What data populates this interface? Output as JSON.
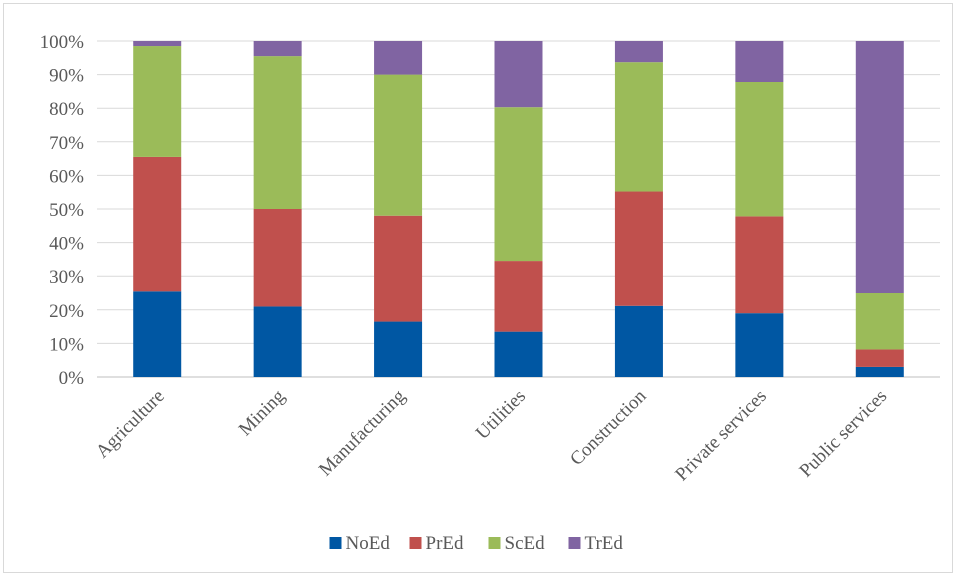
{
  "chart_data": {
    "type": "bar",
    "stacked": true,
    "percent": true,
    "categories": [
      "Agriculture",
      "Mining",
      "Manufacturing",
      "Utilities",
      "Construction",
      "Private services",
      "Public services"
    ],
    "series": [
      {
        "name": "NoEd",
        "color": "#0057a3",
        "values": [
          25.5,
          21.0,
          16.5,
          13.5,
          21.2,
          19.0,
          3.0
        ]
      },
      {
        "name": "PrEd",
        "color": "#c0504d",
        "values": [
          40.0,
          29.0,
          31.5,
          21.0,
          34.0,
          28.8,
          5.2
        ]
      },
      {
        "name": "ScEd",
        "color": "#9bbb59",
        "values": [
          33.0,
          45.5,
          42.0,
          45.8,
          38.5,
          40.0,
          16.8
        ]
      },
      {
        "name": "TrEd",
        "color": "#8064a2",
        "values": [
          1.5,
          4.5,
          10.0,
          19.7,
          6.3,
          12.2,
          75.0
        ]
      }
    ],
    "y_ticks": [
      "0%",
      "10%",
      "20%",
      "30%",
      "40%",
      "50%",
      "60%",
      "70%",
      "80%",
      "90%",
      "100%"
    ],
    "ylim": [
      0,
      100
    ],
    "grid": true,
    "legend": "bottom"
  }
}
